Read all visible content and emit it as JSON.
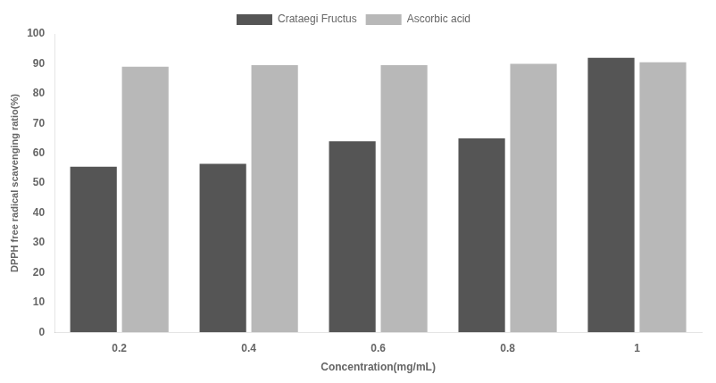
{
  "chart_data": {
    "type": "bar",
    "categories": [
      "0.2",
      "0.4",
      "0.6",
      "0.8",
      "1"
    ],
    "series": [
      {
        "name": "Crataegi Fructus",
        "color": "#555555",
        "values": [
          55.5,
          56.5,
          64.0,
          65.0,
          92.0
        ]
      },
      {
        "name": "Ascorbic acid",
        "color": "#b8b8b8",
        "values": [
          89.0,
          89.5,
          89.5,
          90.0,
          90.5
        ]
      }
    ],
    "xlabel": "Concentration(mg/mL)",
    "ylabel": "DPPH free radical scavenging ratio(%)",
    "ylim": [
      0,
      100
    ],
    "yticks": [
      0,
      10,
      20,
      30,
      40,
      50,
      60,
      70,
      80,
      90,
      100
    ],
    "grid": false,
    "legend": "top"
  }
}
